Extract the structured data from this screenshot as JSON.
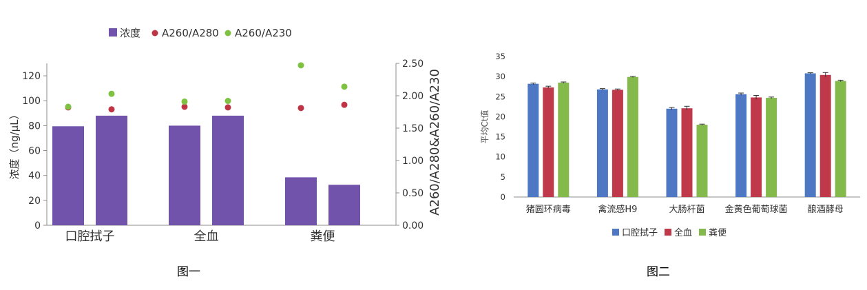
{
  "chart_data": [
    {
      "type": "bar",
      "caption": "图一",
      "categories": [
        "口腔拭子",
        "全血",
        "粪便"
      ],
      "ylabel": "浓度（ng/μL）",
      "ylabel_right": "A260/A280&A260/A230",
      "ylim": [
        0,
        130
      ],
      "ylim_right": [
        0,
        2.5
      ],
      "yticks": [
        "0",
        "20",
        "40",
        "60",
        "80",
        "100",
        "120"
      ],
      "yticks_right": [
        "0.00",
        "0.50",
        "1.00",
        "1.50",
        "2.00",
        "2.50"
      ],
      "legend": {
        "position": "top",
        "bar": "浓度",
        "dot1": "A260/A280",
        "dot2": "A260/A230"
      },
      "colors": {
        "bar": "#7253ab",
        "dot1": "#bf3444",
        "dot2": "#7fc242",
        "axis": "#8c8c8c"
      },
      "bars": [
        {
          "category": "口腔拭子",
          "values": [
            79.5,
            88
          ]
        },
        {
          "category": "全血",
          "values": [
            80,
            88
          ]
        },
        {
          "category": "粪便",
          "values": [
            38.5,
            32.5
          ]
        }
      ],
      "a260_a280": [
        {
          "category": "口腔拭子",
          "values": [
            1.82,
            1.79
          ]
        },
        {
          "category": "全血",
          "values": [
            1.83,
            1.82
          ]
        },
        {
          "category": "粪便",
          "values": [
            1.81,
            1.86
          ]
        }
      ],
      "a260_a230": [
        {
          "category": "口腔拭子",
          "values": [
            1.83,
            2.03
          ]
        },
        {
          "category": "全血",
          "values": [
            1.91,
            1.92
          ]
        },
        {
          "category": "粪便",
          "values": [
            2.47,
            2.14
          ]
        }
      ],
      "grid": false
    },
    {
      "type": "bar",
      "caption": "图二",
      "categories": [
        "猪圆环病毒",
        "禽流感H9",
        "大肠杆菌",
        "金黄色葡萄球菌",
        "酿酒酵母"
      ],
      "ylabel": "平均Ct值",
      "ylim": [
        0,
        35
      ],
      "yticks": [
        "0",
        "5",
        "10",
        "15",
        "20",
        "25",
        "30",
        "35"
      ],
      "legend": {
        "position": "bottom"
      },
      "error_bars": true,
      "series": [
        {
          "name": "口腔拭子",
          "color": "#4e78c4",
          "values": [
            28.2,
            26.8,
            22,
            25.6,
            30.8
          ],
          "errors": [
            0.2,
            0.2,
            0.3,
            0.3,
            0.15
          ]
        },
        {
          "name": "全血",
          "color": "#c0394b",
          "values": [
            27.3,
            26.7,
            22.1,
            24.8,
            30.4
          ],
          "errors": [
            0.3,
            0.2,
            0.5,
            0.5,
            0.6
          ]
        },
        {
          "name": "粪便",
          "color": "#84b94b",
          "values": [
            28.5,
            29.9,
            18,
            24.7,
            28.9
          ],
          "errors": [
            0.15,
            0.15,
            0.15,
            0.2,
            0.2
          ]
        }
      ],
      "grid": false
    }
  ]
}
